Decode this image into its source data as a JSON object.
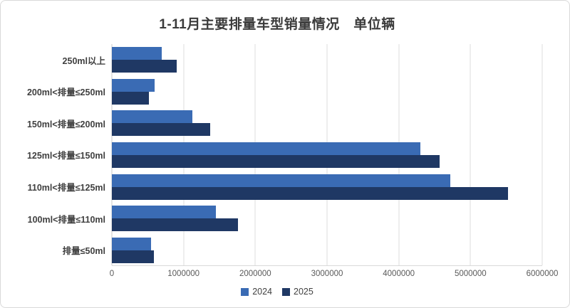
{
  "title": "1-11月主要排量车型销量情况　单位辆",
  "chart_data": {
    "type": "bar",
    "orientation": "horizontal",
    "title": "1-11月主要排量车型销量情况",
    "unit_label": "单位辆",
    "categories": [
      "250ml以上",
      "200ml<排量≤250ml",
      "150ml<排量≤200ml",
      "125ml<排量≤150ml",
      "110ml<排量≤125ml",
      "100ml<排量≤110ml",
      "排量≤50ml"
    ],
    "series": [
      {
        "name": "2024",
        "color": "#3A6BB4",
        "values": [
          700000,
          600000,
          1120000,
          4300000,
          4720000,
          1450000,
          550000
        ]
      },
      {
        "name": "2025",
        "color": "#1F3864",
        "values": [
          900000,
          520000,
          1370000,
          4570000,
          5520000,
          1760000,
          590000
        ]
      }
    ],
    "xlim": [
      0,
      6000000
    ],
    "x_ticks": [
      0,
      1000000,
      2000000,
      3000000,
      4000000,
      5000000,
      6000000
    ],
    "grid": "vertical",
    "legend_position": "bottom"
  },
  "colors": {
    "gridline": "#dcdcdc",
    "axis_text": "#595959",
    "title_text": "#3b3b3b",
    "card_border": "#d9d9d9",
    "series_2024": "#3A6BB4",
    "series_2025": "#1F3864"
  }
}
